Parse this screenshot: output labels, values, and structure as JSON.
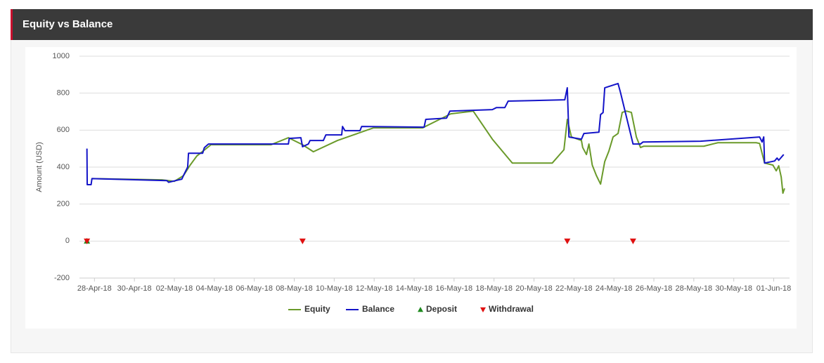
{
  "header": {
    "title": "Equity vs Balance"
  },
  "chart_data": {
    "type": "line",
    "ylabel": "Amount (USD)",
    "xlim": [
      "2018-04-27T06:00",
      "2018-06-01T19:00"
    ],
    "ylim": [
      -200,
      1000
    ],
    "yticks": [
      -200,
      0,
      200,
      400,
      600,
      800,
      1000
    ],
    "grid": true,
    "xticks": [
      {
        "value": "2018-04-28T00:00",
        "label": "28-Apr-18"
      },
      {
        "value": "2018-04-30T00:00",
        "label": "30-Apr-18"
      },
      {
        "value": "2018-05-02T00:00",
        "label": "02-May-18"
      },
      {
        "value": "2018-05-04T00:00",
        "label": "04-May-18"
      },
      {
        "value": "2018-05-06T00:00",
        "label": "06-May-18"
      },
      {
        "value": "2018-05-08T00:00",
        "label": "08-May-18"
      },
      {
        "value": "2018-05-10T00:00",
        "label": "10-May-18"
      },
      {
        "value": "2018-05-12T00:00",
        "label": "12-May-18"
      },
      {
        "value": "2018-05-14T00:00",
        "label": "14-May-18"
      },
      {
        "value": "2018-05-16T00:00",
        "label": "16-May-18"
      },
      {
        "value": "2018-05-18T00:00",
        "label": "18-May-18"
      },
      {
        "value": "2018-05-20T00:00",
        "label": "20-May-18"
      },
      {
        "value": "2018-05-22T00:00",
        "label": "22-May-18"
      },
      {
        "value": "2018-05-24T00:00",
        "label": "24-May-18"
      },
      {
        "value": "2018-05-26T00:00",
        "label": "26-May-18"
      },
      {
        "value": "2018-05-28T00:00",
        "label": "28-May-18"
      },
      {
        "value": "2018-05-30T00:00",
        "label": "30-May-18"
      },
      {
        "value": "2018-06-01T00:00",
        "label": "01-Jun-18"
      }
    ],
    "series": [
      {
        "name": "Equity",
        "type": "line",
        "color": "#6a9a2a",
        "x": [
          "2018-04-27T21:00",
          "2018-05-01T09:00",
          "2018-05-02T00:00",
          "2018-05-02T11:00",
          "2018-05-02T19:00",
          "2018-05-03T03:00",
          "2018-05-03T20:00",
          "2018-05-06T20:00",
          "2018-05-07T17:00",
          "2018-05-08T10:00",
          "2018-05-08T23:00",
          "2018-05-10T04:00",
          "2018-05-11T23:00",
          "2018-05-14T10:00",
          "2018-05-15T20:00",
          "2018-05-16T23:00",
          "2018-05-17T22:00",
          "2018-05-18T22:00",
          "2018-05-20T22:00",
          "2018-05-21T12:00",
          "2018-05-21T16:00",
          "2018-05-21T21:00",
          "2018-05-22T09:00",
          "2018-05-22T10:30",
          "2018-05-22T15:00",
          "2018-05-22T18:00",
          "2018-05-22T22:00",
          "2018-05-23T03:00",
          "2018-05-23T08:00",
          "2018-05-23T13:00",
          "2018-05-23T18:00",
          "2018-05-23T23:00",
          "2018-05-24T05:00",
          "2018-05-24T10:00",
          "2018-05-24T15:00",
          "2018-05-24T21:00",
          "2018-05-25T03:00",
          "2018-05-25T08:00",
          "2018-05-25T12:00",
          "2018-05-28T12:00",
          "2018-05-29T05:00",
          "2018-05-31T03:00",
          "2018-05-31T07:00",
          "2018-05-31T13:00",
          "2018-05-31T23:00",
          "2018-06-01T03:00",
          "2018-06-01T06:00",
          "2018-06-01T09:00",
          "2018-06-01T11:00",
          "2018-06-01T13:00"
        ],
        "values": [
          338,
          331,
          323,
          354,
          411,
          460,
          521,
          521,
          559,
          521,
          483,
          544,
          612,
          612,
          688,
          703,
          551,
          422,
          422,
          494,
          658,
          563,
          544,
          506,
          468,
          525,
          411,
          354,
          308,
          430,
          487,
          563,
          582,
          696,
          703,
          696,
          563,
          506,
          513,
          513,
          532,
          532,
          528,
          422,
          411,
          380,
          407,
          346,
          259,
          285
        ]
      },
      {
        "name": "Balance",
        "type": "line",
        "color": "#1414c8",
        "x": [
          "2018-04-27T15:00",
          "2018-04-27T15:20",
          "2018-04-27T20:00",
          "2018-04-27T21:00",
          "2018-05-01T15:00",
          "2018-05-01T17:00",
          "2018-05-02T09:00",
          "2018-05-02T11:00",
          "2018-05-02T16:00",
          "2018-05-02T17:00",
          "2018-05-03T10:00",
          "2018-05-03T12:00",
          "2018-05-03T17:00",
          "2018-05-07T17:00",
          "2018-05-07T18:00",
          "2018-05-08T08:00",
          "2018-05-08T10:00",
          "2018-05-08T17:00",
          "2018-05-08T19:00",
          "2018-05-09T11:00",
          "2018-05-09T14:00",
          "2018-05-10T09:00",
          "2018-05-10T10:00",
          "2018-05-10T13:00",
          "2018-05-11T07:00",
          "2018-05-11T09:00",
          "2018-05-14T12:00",
          "2018-05-14T14:00",
          "2018-05-15T15:00",
          "2018-05-15T19:00",
          "2018-05-17T22:00",
          "2018-05-18T03:00",
          "2018-05-18T13:00",
          "2018-05-18T17:00",
          "2018-05-21T13:00",
          "2018-05-21T16:00",
          "2018-05-21T18:00",
          "2018-05-22T09:00",
          "2018-05-22T12:00",
          "2018-05-23T06:00",
          "2018-05-23T08:00",
          "2018-05-23T11:00",
          "2018-05-23T13:00",
          "2018-05-24T05:00",
          "2018-05-24T08:00",
          "2018-05-24T23:00",
          "2018-05-25T08:00",
          "2018-05-25T11:00",
          "2018-05-28T08:00",
          "2018-05-31T07:00",
          "2018-05-31T10:00",
          "2018-05-31T12:00",
          "2018-05-31T13:00",
          "2018-06-01T01:00",
          "2018-06-01T04:00",
          "2018-06-01T06:00",
          "2018-06-01T12:00"
        ],
        "values": [
          500,
          305,
          305,
          338,
          327,
          318,
          335,
          355,
          400,
          475,
          475,
          505,
          525,
          525,
          555,
          559,
          510,
          525,
          544,
          544,
          574,
          574,
          620,
          597,
          597,
          620,
          616,
          658,
          665,
          703,
          711,
          722,
          722,
          757,
          764,
          829,
          563,
          551,
          582,
          589,
          684,
          695,
          829,
          852,
          802,
          525,
          525,
          536,
          540,
          563,
          536,
          563,
          422,
          433,
          449,
          437,
          468
        ]
      },
      {
        "name": "Deposit",
        "type": "scatter",
        "marker": "triangle-up",
        "color": "#1f8a1f",
        "x": [
          "2018-04-27T15:00"
        ],
        "values": [
          0
        ]
      },
      {
        "name": "Withdrawal",
        "type": "scatter",
        "marker": "triangle-down",
        "color": "#e01010",
        "x": [
          "2018-04-27T15:00",
          "2018-05-08T10:00",
          "2018-05-21T16:00",
          "2018-05-24T23:00"
        ],
        "values": [
          0,
          0,
          0,
          0
        ]
      }
    ]
  }
}
